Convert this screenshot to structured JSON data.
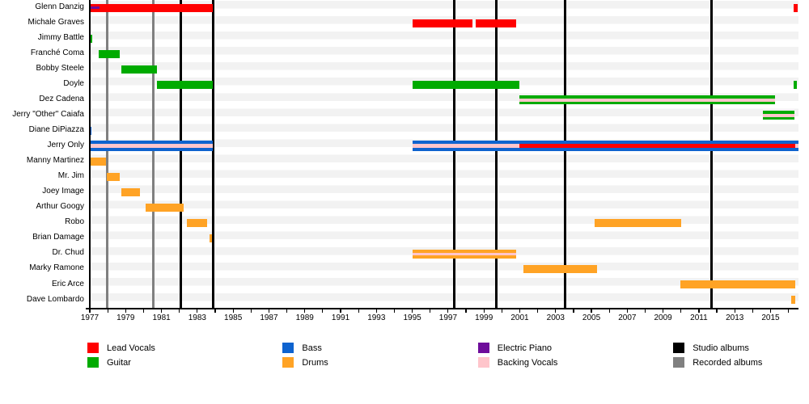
{
  "colors": {
    "lead_vocals": "#FF0000",
    "guitar": "#00AB00",
    "bass": "#0E63CF",
    "drums": "#FFA325",
    "electric_piano": "#6E0D9B",
    "backing_vocals": "#FFC5CB",
    "studio_albums": "#000000",
    "recorded_albums": "#808080",
    "row_stripe": "#F2F2F2",
    "axis": "#000000"
  },
  "chart_data": {
    "type": "gantt-timeline",
    "title": "",
    "x_axis": {
      "start_year": 1977,
      "end_year": 2016,
      "plot_end": 2016.55,
      "tick_every_years": 1,
      "label_years": [
        1977,
        1979,
        1981,
        1983,
        1985,
        1987,
        1989,
        1991,
        1993,
        1995,
        1997,
        1999,
        2001,
        2003,
        2005,
        2007,
        2009,
        2011,
        2013,
        2015
      ]
    },
    "rows": [
      {
        "name": "Glenn Danzig",
        "bars": [
          {
            "start": 1977.0,
            "end": 1983.87,
            "role": "lead_vocals",
            "overlays": [
              {
                "start": 1977.0,
                "end": 1977.56,
                "role": "electric_piano"
              }
            ]
          },
          {
            "start": 2016.27,
            "end": 2016.51,
            "role": "lead_vocals"
          }
        ]
      },
      {
        "name": "Michale Graves",
        "bars": [
          {
            "start": 1995.0,
            "end": 1998.35,
            "role": "lead_vocals"
          },
          {
            "start": 1998.55,
            "end": 2000.79,
            "role": "lead_vocals"
          }
        ]
      },
      {
        "name": "Jimmy Battle",
        "bars": [
          {
            "start": 1977.0,
            "end": 1977.12,
            "role": "guitar"
          }
        ]
      },
      {
        "name": "Franché Coma",
        "bars": [
          {
            "start": 1977.48,
            "end": 1978.68,
            "role": "guitar"
          }
        ]
      },
      {
        "name": "Bobby Steele",
        "bars": [
          {
            "start": 1978.76,
            "end": 1980.76,
            "role": "guitar"
          }
        ]
      },
      {
        "name": "Doyle",
        "bars": [
          {
            "start": 1980.76,
            "end": 1983.87,
            "role": "guitar"
          },
          {
            "start": 1995.0,
            "end": 2001.0,
            "role": "guitar"
          },
          {
            "start": 2016.27,
            "end": 2016.49,
            "role": "guitar"
          }
        ]
      },
      {
        "name": "Dez Cadena",
        "bars": [
          {
            "start": 2001.0,
            "end": 2015.25,
            "role": "guitar",
            "h": 11,
            "overlays": [
              {
                "start": 2001.0,
                "end": 2015.25,
                "role": "backing_vocals"
              }
            ]
          }
        ]
      },
      {
        "name": "Jerry \"Other\" Caiafa",
        "bars": [
          {
            "start": 2014.55,
            "end": 2016.35,
            "role": "guitar",
            "h": 11,
            "overlays": [
              {
                "start": 2014.55,
                "end": 2016.35,
                "role": "backing_vocals"
              }
            ]
          }
        ]
      },
      {
        "name": "Diane DiPiazza",
        "bars": [
          {
            "start": 1977.0,
            "end": 1977.1,
            "role": "bass"
          }
        ]
      },
      {
        "name": "Jerry Only",
        "bars": [
          {
            "start": 1977.0,
            "end": 1983.87,
            "role": "bass",
            "h": 13,
            "overlays": [
              {
                "start": 1977.0,
                "end": 1983.87,
                "role": "backing_vocals"
              }
            ]
          },
          {
            "start": 1995.0,
            "end": 2016.56,
            "role": "bass",
            "h": 13,
            "overlays": [
              {
                "start": 1995.0,
                "end": 2001.0,
                "role": "backing_vocals"
              },
              {
                "start": 2001.0,
                "end": 2016.36,
                "role": "lead_vocals"
              },
              {
                "start": 2016.36,
                "end": 2016.56,
                "role": "backing_vocals"
              }
            ]
          }
        ]
      },
      {
        "name": "Manny Martinez",
        "bars": [
          {
            "start": 1977.0,
            "end": 1977.9,
            "role": "drums"
          }
        ]
      },
      {
        "name": "Mr. Jim",
        "bars": [
          {
            "start": 1977.93,
            "end": 1978.68,
            "role": "drums"
          }
        ]
      },
      {
        "name": "Joey Image",
        "bars": [
          {
            "start": 1978.76,
            "end": 1979.81,
            "role": "drums"
          }
        ]
      },
      {
        "name": "Arthur Googy",
        "bars": [
          {
            "start": 1980.12,
            "end": 1982.23,
            "role": "drums"
          }
        ]
      },
      {
        "name": "Robo",
        "bars": [
          {
            "start": 1982.42,
            "end": 1983.53,
            "role": "drums"
          },
          {
            "start": 2005.18,
            "end": 2010.0,
            "role": "drums"
          }
        ]
      },
      {
        "name": "Brian Damage",
        "bars": [
          {
            "start": 1983.68,
            "end": 1983.8,
            "role": "drums"
          }
        ]
      },
      {
        "name": "Dr. Chud",
        "bars": [
          {
            "start": 1995.0,
            "end": 2000.79,
            "role": "drums",
            "h": 11,
            "overlays": [
              {
                "start": 1995.0,
                "end": 2000.79,
                "role": "backing_vocals"
              }
            ]
          }
        ]
      },
      {
        "name": "Marky Ramone",
        "bars": [
          {
            "start": 2001.21,
            "end": 2005.32,
            "role": "drums"
          }
        ]
      },
      {
        "name": "Eric Arce",
        "bars": [
          {
            "start": 2009.97,
            "end": 2016.37,
            "role": "drums"
          }
        ]
      },
      {
        "name": "Dave Lombardo",
        "bars": [
          {
            "start": 2016.17,
            "end": 2016.4,
            "role": "drums"
          }
        ]
      }
    ],
    "album_lines": [
      {
        "year": 1977.95,
        "type": "recorded_albums"
      },
      {
        "year": 1980.54,
        "type": "recorded_albums"
      },
      {
        "year": 1982.1,
        "type": "studio_albums"
      },
      {
        "year": 1983.88,
        "type": "studio_albums"
      },
      {
        "year": 1997.35,
        "type": "studio_albums"
      },
      {
        "year": 1999.67,
        "type": "studio_albums"
      },
      {
        "year": 2003.51,
        "type": "studio_albums"
      },
      {
        "year": 2011.69,
        "type": "studio_albums"
      }
    ]
  },
  "legend": {
    "columns": [
      {
        "items": [
          {
            "label": "Lead Vocals",
            "role": "lead_vocals"
          },
          {
            "label": "Guitar",
            "role": "guitar"
          }
        ]
      },
      {
        "items": [
          {
            "label": "Bass",
            "role": "bass"
          },
          {
            "label": "Drums",
            "role": "drums"
          }
        ]
      },
      {
        "items": [
          {
            "label": "Electric Piano",
            "role": "electric_piano"
          },
          {
            "label": "Backing Vocals",
            "role": "backing_vocals"
          }
        ]
      },
      {
        "items": [
          {
            "label": "Studio albums",
            "role": "studio_albums"
          },
          {
            "label": "Recorded albums",
            "role": "recorded_albums"
          }
        ]
      }
    ]
  }
}
